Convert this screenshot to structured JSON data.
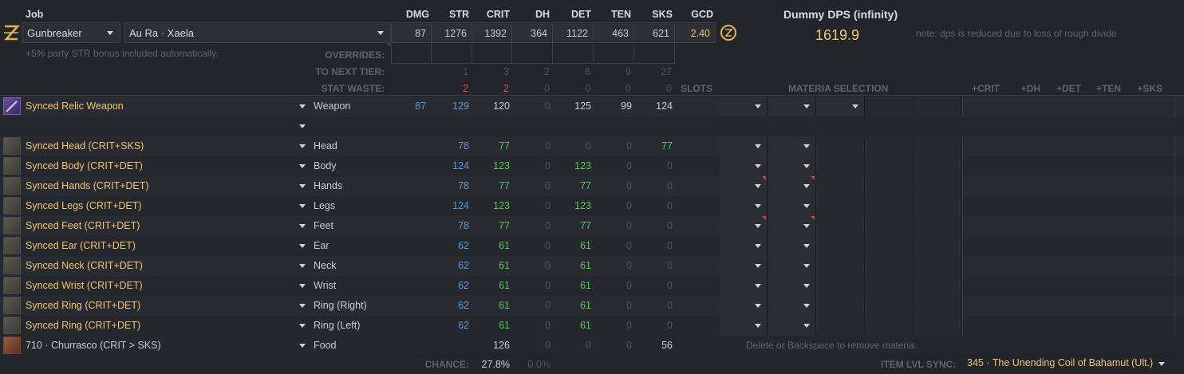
{
  "header": {
    "job_label": "Job",
    "job_value": "Gunbreaker",
    "race_value": "Au Ra · Xaela",
    "party_note": "+5% party STR bonus included automatically.",
    "stat_headers": [
      "DMG",
      "STR",
      "CRIT",
      "DH",
      "DET",
      "TEN",
      "SKS",
      "GCD"
    ],
    "stat_values": [
      "87",
      "1276",
      "1392",
      "364",
      "1122",
      "463",
      "621",
      "2.40"
    ],
    "overrides_label": "OVERRIDES:",
    "next_tier_label": "TO NEXT TIER:",
    "next_tier_values": [
      "1",
      "3",
      "2",
      "6",
      "9",
      "27"
    ],
    "stat_waste_label": "STAT WASTE:",
    "stat_waste_values": [
      "2",
      "2",
      "0",
      "0",
      "0",
      "0"
    ],
    "dps_title": "Dummy DPS (infinity)",
    "dps_value": "1619.9",
    "dps_note": "note: dps is reduced due to loss of rough divide",
    "slots_label": "SLOTS",
    "materia_label": "MATERIA SELECTION",
    "bonus_headers": [
      "+CRIT",
      "+DH",
      "+DET",
      "+TEN",
      "+SKS"
    ]
  },
  "gear": [
    {
      "name": "Synced Relic Weapon",
      "slot": "Weapon",
      "vals": [
        "87",
        "129",
        "120",
        "0",
        "125",
        "99",
        "124"
      ],
      "icon": "sword-icon"
    },
    {
      "name": "",
      "slot": "",
      "vals": []
    },
    {
      "name": "Synced Head (CRIT+SKS)",
      "slot": "Head",
      "vals": [
        "",
        "78",
        "77",
        "0",
        "0",
        "0",
        "77"
      ]
    },
    {
      "name": "Synced Body (CRIT+DET)",
      "slot": "Body",
      "vals": [
        "",
        "124",
        "123",
        "0",
        "123",
        "0",
        "0"
      ]
    },
    {
      "name": "Synced Hands (CRIT+DET)",
      "slot": "Hands",
      "vals": [
        "",
        "78",
        "77",
        "0",
        "77",
        "0",
        "0"
      ]
    },
    {
      "name": "Synced Legs (CRIT+DET)",
      "slot": "Legs",
      "vals": [
        "",
        "124",
        "123",
        "0",
        "123",
        "0",
        "0"
      ]
    },
    {
      "name": "Synced Feet (CRIT+DET)",
      "slot": "Feet",
      "vals": [
        "",
        "78",
        "77",
        "0",
        "77",
        "0",
        "0"
      ]
    },
    {
      "name": "Synced Ear (CRIT+DET)",
      "slot": "Ear",
      "vals": [
        "",
        "62",
        "61",
        "0",
        "61",
        "0",
        "0"
      ]
    },
    {
      "name": "Synced Neck (CRIT+DET)",
      "slot": "Neck",
      "vals": [
        "",
        "62",
        "61",
        "0",
        "61",
        "0",
        "0"
      ]
    },
    {
      "name": "Synced Wrist (CRIT+DET)",
      "slot": "Wrist",
      "vals": [
        "",
        "62",
        "61",
        "0",
        "61",
        "0",
        "0"
      ]
    },
    {
      "name": "Synced Ring (CRIT+DET)",
      "slot": "Ring (Right)",
      "vals": [
        "",
        "62",
        "61",
        "0",
        "61",
        "0",
        "0"
      ]
    },
    {
      "name": "Synced Ring (CRIT+DET)",
      "slot": "Ring (Left)",
      "vals": [
        "",
        "62",
        "61",
        "0",
        "61",
        "0",
        "0"
      ]
    }
  ],
  "food": {
    "name": "710 · Churrasco (CRIT > SKS)",
    "slot": "Food",
    "crit": "126",
    "dh": "0",
    "det": "0",
    "ten": "0",
    "sks": "56"
  },
  "materia_hint": "Delete or Backspace to remove materia.",
  "footer": {
    "chance_label": "CHANCE:",
    "chance_crit": "27.8%",
    "chance_dh": "0.0%",
    "sync_label": "ITEM LVL SYNC:",
    "sync_value": "345 · The Unending Coil of Bahamut (Ult.)"
  }
}
